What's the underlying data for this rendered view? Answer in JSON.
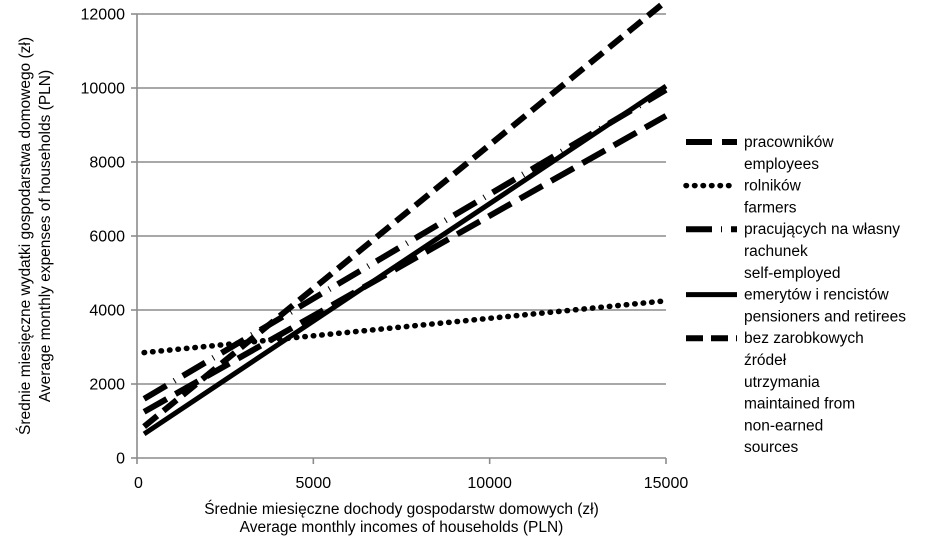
{
  "chart_data": {
    "type": "line",
    "xlabel": [
      "Średnie miesięczne dochody gospodarstw domowych (zł)",
      "Average monthly incomes of households (PLN)"
    ],
    "ylabel": [
      "Średnie miesięczne wydatki gospodarstwa domowego (zł)",
      "Average monthly expenses of households (PLN)"
    ],
    "xlim": [
      0,
      15000
    ],
    "ylim": [
      0,
      12000
    ],
    "x_ticks": [
      0,
      5000,
      10000,
      15000
    ],
    "y_ticks": [
      0,
      2000,
      4000,
      6000,
      8000,
      10000,
      12000
    ],
    "x_tick_labels": [
      "0",
      "5000",
      "10000",
      "15000"
    ],
    "y_tick_labels": [
      "0",
      "2000",
      "4000",
      "6000",
      "8000",
      "10000",
      "12000"
    ],
    "grid": "horizontal",
    "legend_position": "right",
    "series": [
      {
        "name": [
          "pracowników",
          "employees"
        ],
        "style": "long-dash",
        "x": [
          200,
          15000
        ],
        "y": [
          1250,
          9250
        ]
      },
      {
        "name": [
          "rolników",
          "farmers"
        ],
        "style": "dotted",
        "x": [
          200,
          15000
        ],
        "y": [
          2850,
          4250
        ]
      },
      {
        "name": [
          "pracujących na własny",
          "rachunek",
          "self-employed"
        ],
        "style": "dash-dot",
        "x": [
          200,
          15000
        ],
        "y": [
          1600,
          9950
        ]
      },
      {
        "name": [
          "emerytów i rencistów",
          "pensioners and retirees"
        ],
        "style": "solid",
        "x": [
          200,
          15000
        ],
        "y": [
          650,
          10050
        ]
      },
      {
        "name": [
          "bez zarobkowych",
          "źródeł",
          "utrzymania",
          "maintained from",
          "non-earned",
          "sources"
        ],
        "style": "short-dash",
        "x": [
          200,
          15000
        ],
        "y": [
          850,
          12350
        ]
      }
    ]
  }
}
